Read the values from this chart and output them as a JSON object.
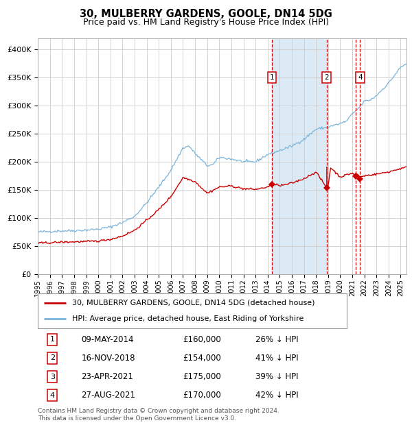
{
  "title": "30, MULBERRY GARDENS, GOOLE, DN14 5DG",
  "subtitle": "Price paid vs. HM Land Registry's House Price Index (HPI)",
  "ylim": [
    0,
    420000
  ],
  "yticks": [
    0,
    50000,
    100000,
    150000,
    200000,
    250000,
    300000,
    350000,
    400000
  ],
  "ytick_labels": [
    "£0",
    "£50K",
    "£100K",
    "£150K",
    "£200K",
    "£250K",
    "£300K",
    "£350K",
    "£400K"
  ],
  "xlim_start": 1995.0,
  "xlim_end": 2025.5,
  "hpi_color": "#7ab4dc",
  "property_color": "#cc0000",
  "background_color": "#ffffff",
  "grid_color": "#cccccc",
  "shade_color": "#dceaf5",
  "transactions": [
    {
      "label": "1",
      "date_num": 2014.35,
      "price": 160000,
      "show_label": true
    },
    {
      "label": "2",
      "date_num": 2018.88,
      "price": 154000,
      "show_label": true
    },
    {
      "label": "3",
      "date_num": 2021.31,
      "price": 175000,
      "show_label": false
    },
    {
      "label": "4",
      "date_num": 2021.65,
      "price": 170000,
      "show_label": true
    }
  ],
  "legend_property": "30, MULBERRY GARDENS, GOOLE, DN14 5DG (detached house)",
  "legend_hpi": "HPI: Average price, detached house, East Riding of Yorkshire",
  "table_rows": [
    {
      "num": "1",
      "date": "09-MAY-2014",
      "price": "£160,000",
      "hpi": "26% ↓ HPI"
    },
    {
      "num": "2",
      "date": "16-NOV-2018",
      "price": "£154,000",
      "hpi": "41% ↓ HPI"
    },
    {
      "num": "3",
      "date": "23-APR-2021",
      "price": "£175,000",
      "hpi": "39% ↓ HPI"
    },
    {
      "num": "4",
      "date": "27-AUG-2021",
      "price": "£170,000",
      "hpi": "42% ↓ HPI"
    }
  ],
  "footnote": "Contains HM Land Registry data © Crown copyright and database right 2024.\nThis data is licensed under the Open Government Licence v3.0."
}
